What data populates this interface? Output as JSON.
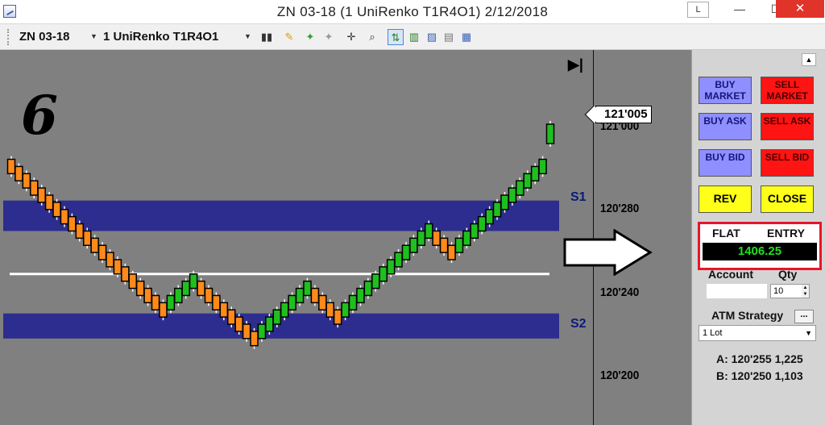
{
  "window": {
    "title": "ZN 03-18 (1 UniRenko T1R4O1)  2/12/2018",
    "link_button": "L",
    "minimize": "—",
    "maximize": "☐",
    "close": "✕"
  },
  "toolbar": {
    "instrument": "ZN 03-18",
    "bar_type": "1 UniRenko T1R4O1"
  },
  "chart": {
    "annotation": "6",
    "support_label": "S2",
    "resistance_label": "S1",
    "current_price": "121'005",
    "go_to_end": "▶|",
    "y_ticks": [
      {
        "label": "121'000"
      },
      {
        "label": "120'280"
      },
      {
        "label": "120'240"
      },
      {
        "label": "120'200"
      }
    ],
    "colors": {
      "up": "#1fbf1f",
      "down": "#ff8a1a",
      "zone": "#2d2d8f",
      "line": "#ffffff",
      "background": "#808080"
    }
  },
  "chart_data": {
    "type": "candlestick",
    "title": "ZN 03-18 (1 UniRenko T1R4O1)",
    "y_unit": "price (ticks)",
    "ylim": [
      120.19,
      121.05
    ],
    "zones": [
      {
        "name": "S1",
        "low": 120.278,
        "high": 120.295
      },
      {
        "name": "S2",
        "low": 120.218,
        "high": 120.232
      }
    ],
    "horizontal_line": 120.254,
    "bars": [
      {
        "dir": "down",
        "open": 120.318,
        "close": 120.31
      },
      {
        "dir": "down",
        "open": 120.314,
        "close": 120.306
      },
      {
        "dir": "down",
        "open": 120.31,
        "close": 120.302
      },
      {
        "dir": "down",
        "open": 120.306,
        "close": 120.298
      },
      {
        "dir": "down",
        "open": 120.302,
        "close": 120.294
      },
      {
        "dir": "down",
        "open": 120.298,
        "close": 120.29
      },
      {
        "dir": "down",
        "open": 120.294,
        "close": 120.286
      },
      {
        "dir": "down",
        "open": 120.29,
        "close": 120.282
      },
      {
        "dir": "down",
        "open": 120.286,
        "close": 120.278
      },
      {
        "dir": "down",
        "open": 120.282,
        "close": 120.274
      },
      {
        "dir": "down",
        "open": 120.278,
        "close": 120.27
      },
      {
        "dir": "down",
        "open": 120.274,
        "close": 120.266
      },
      {
        "dir": "down",
        "open": 120.27,
        "close": 120.262
      },
      {
        "dir": "down",
        "open": 120.266,
        "close": 120.258
      },
      {
        "dir": "down",
        "open": 120.262,
        "close": 120.254
      },
      {
        "dir": "down",
        "open": 120.258,
        "close": 120.25
      },
      {
        "dir": "down",
        "open": 120.254,
        "close": 120.246
      },
      {
        "dir": "down",
        "open": 120.25,
        "close": 120.242
      },
      {
        "dir": "down",
        "open": 120.246,
        "close": 120.238
      },
      {
        "dir": "down",
        "open": 120.242,
        "close": 120.234
      },
      {
        "dir": "down",
        "open": 120.238,
        "close": 120.23
      },
      {
        "dir": "up",
        "open": 120.234,
        "close": 120.242
      },
      {
        "dir": "up",
        "open": 120.238,
        "close": 120.246
      },
      {
        "dir": "up",
        "open": 120.242,
        "close": 120.25
      },
      {
        "dir": "up",
        "open": 120.246,
        "close": 120.254
      },
      {
        "dir": "down",
        "open": 120.25,
        "close": 120.242
      },
      {
        "dir": "down",
        "open": 120.246,
        "close": 120.238
      },
      {
        "dir": "down",
        "open": 120.242,
        "close": 120.234
      },
      {
        "dir": "down",
        "open": 120.238,
        "close": 120.23
      },
      {
        "dir": "down",
        "open": 120.234,
        "close": 120.226
      },
      {
        "dir": "down",
        "open": 120.23,
        "close": 120.222
      },
      {
        "dir": "down",
        "open": 120.226,
        "close": 120.218
      },
      {
        "dir": "down",
        "open": 120.222,
        "close": 120.214
      },
      {
        "dir": "up",
        "open": 120.218,
        "close": 120.226
      },
      {
        "dir": "up",
        "open": 120.222,
        "close": 120.23
      },
      {
        "dir": "up",
        "open": 120.226,
        "close": 120.234
      },
      {
        "dir": "up",
        "open": 120.23,
        "close": 120.238
      },
      {
        "dir": "up",
        "open": 120.234,
        "close": 120.242
      },
      {
        "dir": "up",
        "open": 120.238,
        "close": 120.246
      },
      {
        "dir": "up",
        "open": 120.242,
        "close": 120.25
      },
      {
        "dir": "down",
        "open": 120.246,
        "close": 120.238
      },
      {
        "dir": "down",
        "open": 120.242,
        "close": 120.234
      },
      {
        "dir": "down",
        "open": 120.238,
        "close": 120.23
      },
      {
        "dir": "down",
        "open": 120.234,
        "close": 120.226
      },
      {
        "dir": "up",
        "open": 120.23,
        "close": 120.238
      },
      {
        "dir": "up",
        "open": 120.234,
        "close": 120.242
      },
      {
        "dir": "up",
        "open": 120.238,
        "close": 120.246
      },
      {
        "dir": "up",
        "open": 120.242,
        "close": 120.25
      },
      {
        "dir": "up",
        "open": 120.246,
        "close": 120.254
      },
      {
        "dir": "up",
        "open": 120.25,
        "close": 120.258
      },
      {
        "dir": "up",
        "open": 120.254,
        "close": 120.262
      },
      {
        "dir": "up",
        "open": 120.258,
        "close": 120.266
      },
      {
        "dir": "up",
        "open": 120.262,
        "close": 120.27
      },
      {
        "dir": "up",
        "open": 120.266,
        "close": 120.274
      },
      {
        "dir": "up",
        "open": 120.27,
        "close": 120.278
      },
      {
        "dir": "up",
        "open": 120.274,
        "close": 120.282
      },
      {
        "dir": "down",
        "open": 120.278,
        "close": 120.27
      },
      {
        "dir": "down",
        "open": 120.274,
        "close": 120.266
      },
      {
        "dir": "down",
        "open": 120.27,
        "close": 120.262
      },
      {
        "dir": "up",
        "open": 120.266,
        "close": 120.274
      },
      {
        "dir": "up",
        "open": 120.27,
        "close": 120.278
      },
      {
        "dir": "up",
        "open": 120.274,
        "close": 120.282
      },
      {
        "dir": "up",
        "open": 120.278,
        "close": 120.286
      },
      {
        "dir": "up",
        "open": 120.282,
        "close": 120.29
      },
      {
        "dir": "up",
        "open": 120.286,
        "close": 120.294
      },
      {
        "dir": "up",
        "open": 120.29,
        "close": 120.298
      },
      {
        "dir": "up",
        "open": 120.294,
        "close": 120.302
      },
      {
        "dir": "up",
        "open": 120.298,
        "close": 120.306
      },
      {
        "dir": "up",
        "open": 120.302,
        "close": 120.31
      },
      {
        "dir": "up",
        "open": 120.306,
        "close": 120.314
      },
      {
        "dir": "up",
        "open": 120.31,
        "close": 120.318
      },
      {
        "dir": "up",
        "open": 120.314,
        "close": 121.002
      }
    ],
    "y_tick_values": [
      121.0,
      120.28,
      120.24,
      120.2
    ],
    "annotations": [
      "6",
      "S1",
      "S2",
      "121'005"
    ]
  },
  "panel": {
    "buttons": {
      "buy_market": "BUY MARKET",
      "sell_market": "SELL MARKET",
      "buy_ask": "BUY ASK",
      "sell_ask": "SELL ASK",
      "buy_bid": "BUY BID",
      "sell_bid": "SELL BID",
      "rev": "REV",
      "close": "CLOSE"
    },
    "position": {
      "status": "FLAT",
      "mode": "ENTRY",
      "value": "1406.25"
    },
    "account_label": "Account",
    "qty_label": "Qty",
    "qty_value": "10",
    "atm_label": "ATM Strategy",
    "atm_button": "...",
    "atm_value": "1 Lot",
    "quotes": [
      {
        "side": "A:",
        "price": "120'255",
        "size": "1,225"
      },
      {
        "side": "B:",
        "price": "120'250",
        "size": "1,103"
      }
    ]
  }
}
